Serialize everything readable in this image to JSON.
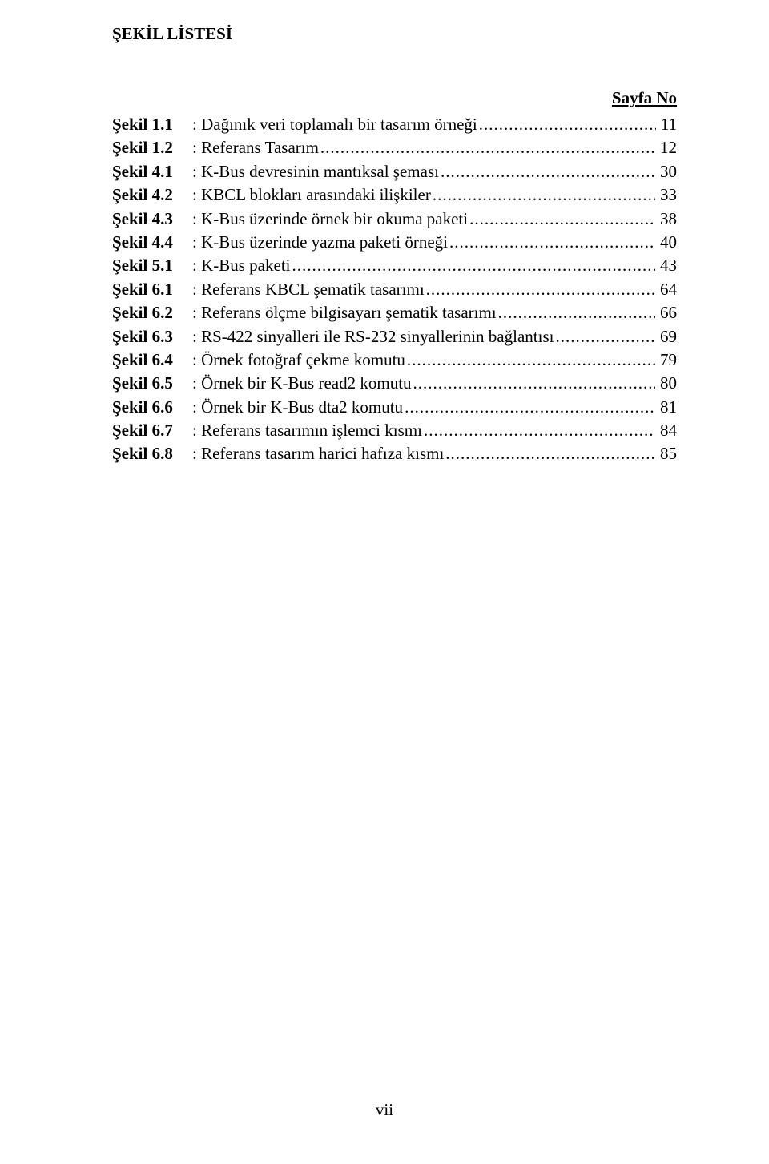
{
  "title": "ŞEKİL LİSTESİ",
  "header_right": "Sayfa No",
  "page_number": "vii",
  "entries": [
    {
      "label": "Şekil 1.1",
      "desc": ": Dağınık veri toplamalı bir tasarım örneği",
      "page": "11"
    },
    {
      "label": "Şekil 1.2",
      "desc": ": Referans Tasarım",
      "page": "12"
    },
    {
      "label": "Şekil 4.1",
      "desc": ": K-Bus devresinin mantıksal şeması",
      "page": "30"
    },
    {
      "label": "Şekil 4.2",
      "desc": ": KBCL blokları arasındaki ilişkiler",
      "page": "33"
    },
    {
      "label": "Şekil 4.3",
      "desc": ": K-Bus üzerinde örnek bir okuma paketi",
      "page": "38"
    },
    {
      "label": "Şekil 4.4",
      "desc": ": K-Bus üzerinde yazma paketi örneği",
      "page": "40"
    },
    {
      "label": "Şekil 5.1",
      "desc": ": K-Bus paketi",
      "page": "43"
    },
    {
      "label": "Şekil 6.1",
      "desc": ": Referans KBCL şematik tasarımı",
      "page": "64"
    },
    {
      "label": "Şekil 6.2",
      "desc": ": Referans ölçme bilgisayarı şematik tasarımı",
      "page": "66"
    },
    {
      "label": "Şekil 6.3",
      "desc": ": RS-422 sinyalleri ile RS-232 sinyallerinin bağlantısı",
      "page": "69"
    },
    {
      "label": "Şekil 6.4",
      "desc": ": Örnek fotoğraf çekme komutu",
      "page": "79"
    },
    {
      "label": "Şekil 6.5",
      "desc": ": Örnek bir K-Bus read2 komutu",
      "page": "80"
    },
    {
      "label": "Şekil 6.6",
      "desc": ": Örnek bir K-Bus dta2 komutu",
      "page": "81"
    },
    {
      "label": "Şekil 6.7",
      "desc": ": Referans tasarımın işlemci kısmı",
      "page": "84"
    },
    {
      "label": "Şekil 6.8",
      "desc": ": Referans tasarım harici hafıza kısmı",
      "page": "85"
    }
  ]
}
